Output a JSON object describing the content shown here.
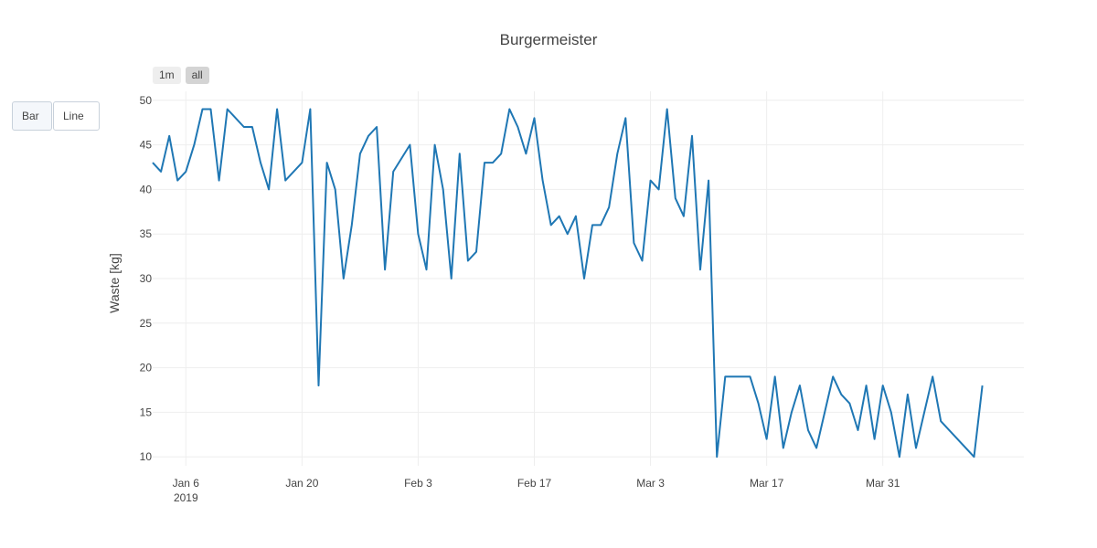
{
  "chart_data": {
    "type": "line",
    "title": "Burgermeister",
    "xlabel": "",
    "ylabel": "Waste [kg]",
    "x_start": "2019-01-02",
    "x_end": "2019-04-17",
    "ylim": [
      9,
      51
    ],
    "yticks": [
      10,
      15,
      20,
      25,
      30,
      35,
      40,
      45,
      50
    ],
    "xticks": [
      {
        "date": "2019-01-06",
        "label": "Jan 6",
        "sublabel": "2019"
      },
      {
        "date": "2019-01-20",
        "label": "Jan 20",
        "sublabel": ""
      },
      {
        "date": "2019-02-03",
        "label": "Feb 3",
        "sublabel": ""
      },
      {
        "date": "2019-02-17",
        "label": "Feb 17",
        "sublabel": ""
      },
      {
        "date": "2019-03-03",
        "label": "Mar 3",
        "sublabel": ""
      },
      {
        "date": "2019-03-17",
        "label": "Mar 17",
        "sublabel": ""
      },
      {
        "date": "2019-03-31",
        "label": "Mar 31",
        "sublabel": ""
      }
    ],
    "grid": true,
    "line_color": "#1f77b4",
    "series": [
      {
        "points": [
          [
            "2019-01-02",
            43
          ],
          [
            "2019-01-03",
            42
          ],
          [
            "2019-01-04",
            46
          ],
          [
            "2019-01-05",
            41
          ],
          [
            "2019-01-06",
            42
          ],
          [
            "2019-01-07",
            45
          ],
          [
            "2019-01-08",
            49
          ],
          [
            "2019-01-09",
            49
          ],
          [
            "2019-01-10",
            41
          ],
          [
            "2019-01-11",
            49
          ],
          [
            "2019-01-13",
            47
          ],
          [
            "2019-01-14",
            47
          ],
          [
            "2019-01-15",
            43
          ],
          [
            "2019-01-16",
            40
          ],
          [
            "2019-01-17",
            49
          ],
          [
            "2019-01-18",
            41
          ],
          [
            "2019-01-20",
            43
          ],
          [
            "2019-01-21",
            49
          ],
          [
            "2019-01-22",
            18
          ],
          [
            "2019-01-23",
            43
          ],
          [
            "2019-01-24",
            40
          ],
          [
            "2019-01-25",
            30
          ],
          [
            "2019-01-26",
            36
          ],
          [
            "2019-01-27",
            44
          ],
          [
            "2019-01-28",
            46
          ],
          [
            "2019-01-29",
            47
          ],
          [
            "2019-01-30",
            31
          ],
          [
            "2019-01-31",
            42
          ],
          [
            "2019-02-02",
            45
          ],
          [
            "2019-02-03",
            35
          ],
          [
            "2019-02-04",
            31
          ],
          [
            "2019-02-05",
            45
          ],
          [
            "2019-02-06",
            40
          ],
          [
            "2019-02-07",
            30
          ],
          [
            "2019-02-08",
            44
          ],
          [
            "2019-02-09",
            32
          ],
          [
            "2019-02-10",
            33
          ],
          [
            "2019-02-11",
            43
          ],
          [
            "2019-02-12",
            43
          ],
          [
            "2019-02-13",
            44
          ],
          [
            "2019-02-14",
            49
          ],
          [
            "2019-02-15",
            47
          ],
          [
            "2019-02-16",
            44
          ],
          [
            "2019-02-17",
            48
          ],
          [
            "2019-02-18",
            41
          ],
          [
            "2019-02-19",
            36
          ],
          [
            "2019-02-20",
            37
          ],
          [
            "2019-02-21",
            35
          ],
          [
            "2019-02-22",
            37
          ],
          [
            "2019-02-23",
            30
          ],
          [
            "2019-02-24",
            36
          ],
          [
            "2019-02-25",
            36
          ],
          [
            "2019-02-26",
            38
          ],
          [
            "2019-02-27",
            44
          ],
          [
            "2019-02-28",
            48
          ],
          [
            "2019-03-01",
            34
          ],
          [
            "2019-03-02",
            32
          ],
          [
            "2019-03-03",
            41
          ],
          [
            "2019-03-04",
            40
          ],
          [
            "2019-03-05",
            49
          ],
          [
            "2019-03-06",
            39
          ],
          [
            "2019-03-07",
            37
          ],
          [
            "2019-03-08",
            46
          ],
          [
            "2019-03-09",
            31
          ],
          [
            "2019-03-10",
            41
          ],
          [
            "2019-03-11",
            10
          ],
          [
            "2019-03-12",
            19
          ],
          [
            "2019-03-15",
            19
          ],
          [
            "2019-03-16",
            16
          ],
          [
            "2019-03-17",
            12
          ],
          [
            "2019-03-18",
            19
          ],
          [
            "2019-03-19",
            11
          ],
          [
            "2019-03-20",
            15
          ],
          [
            "2019-03-21",
            18
          ],
          [
            "2019-03-22",
            13
          ],
          [
            "2019-03-23",
            11
          ],
          [
            "2019-03-25",
            19
          ],
          [
            "2019-03-26",
            17
          ],
          [
            "2019-03-27",
            16
          ],
          [
            "2019-03-28",
            13
          ],
          [
            "2019-03-29",
            18
          ],
          [
            "2019-03-30",
            12
          ],
          [
            "2019-03-31",
            18
          ],
          [
            "2019-04-01",
            15
          ],
          [
            "2019-04-02",
            10
          ],
          [
            "2019-04-03",
            17
          ],
          [
            "2019-04-04",
            11
          ],
          [
            "2019-04-05",
            15
          ],
          [
            "2019-04-06",
            19
          ],
          [
            "2019-04-07",
            14
          ],
          [
            "2019-04-11",
            10
          ],
          [
            "2019-04-12",
            18
          ]
        ]
      }
    ]
  },
  "controls": {
    "range_buttons": [
      {
        "label": "1m",
        "active": false
      },
      {
        "label": "all",
        "active": true
      }
    ],
    "type_buttons": [
      {
        "label": "Bar"
      },
      {
        "label": "Line"
      }
    ]
  }
}
